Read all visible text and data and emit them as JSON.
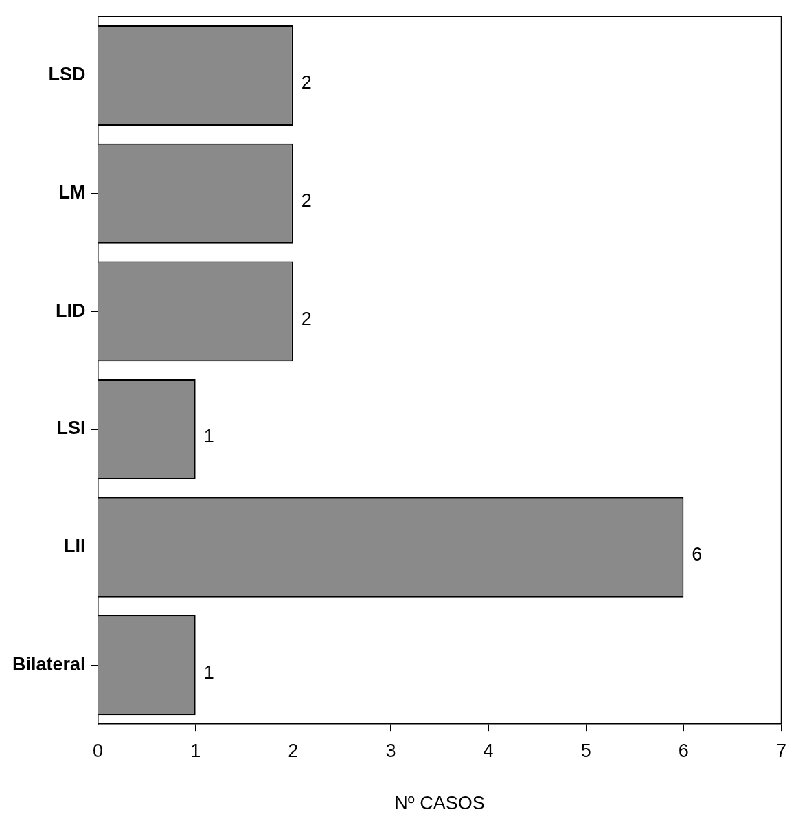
{
  "chart_data": {
    "type": "bar",
    "orientation": "horizontal",
    "xlabel": "Nº CASOS",
    "categories": [
      "LSD",
      "LM",
      "LID",
      "LSI",
      "LII",
      "Bilateral"
    ],
    "values": [
      2,
      2,
      2,
      1,
      6,
      1
    ],
    "color": "#8a8a8a",
    "xlim": [
      0,
      7
    ],
    "xticks": [
      0,
      1,
      2,
      3,
      4,
      5,
      6,
      7
    ],
    "grid": false,
    "legend": false,
    "data_labels": true
  }
}
